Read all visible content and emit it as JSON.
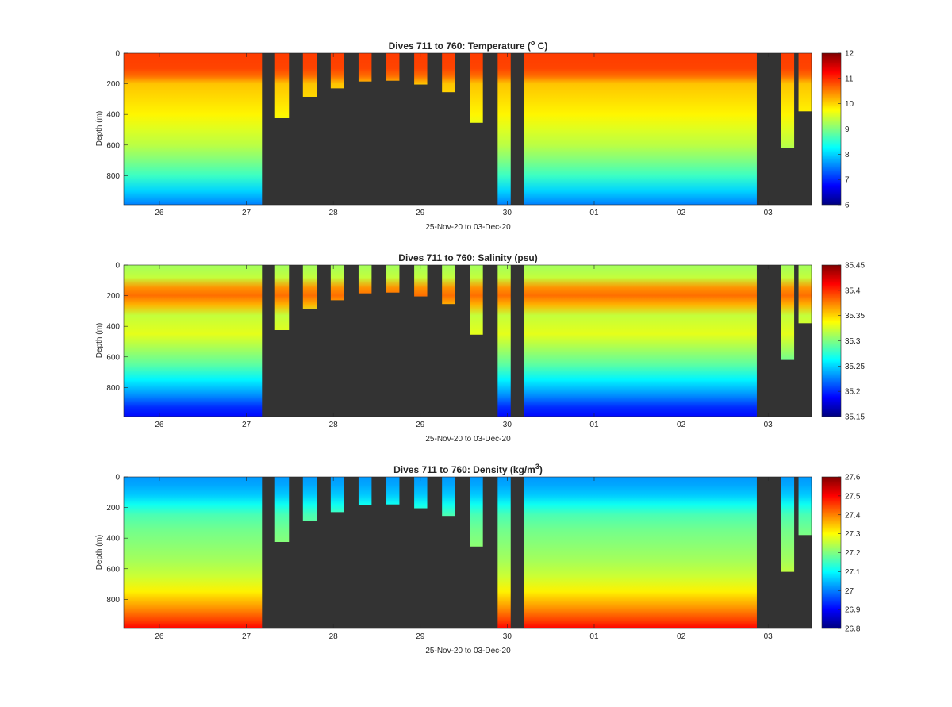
{
  "figure": {
    "background": "#ffffff",
    "panel_background": "#333333"
  },
  "chart_data": [
    {
      "type": "heatmap",
      "title_prefix": "Dives 711 to 760: Temperature (",
      "title_sup": "o",
      "title_suffix": " C)",
      "xlabel": "25-Nov-20 to 03-Dec-20",
      "ylabel": "Depth (m)",
      "x_tick_labels": [
        "26",
        "27",
        "28",
        "29",
        "30",
        "01",
        "02",
        "03"
      ],
      "x_tick_values": [
        1,
        2,
        3,
        4,
        5,
        6,
        7,
        8
      ],
      "xlim": [
        0.59,
        8.5
      ],
      "y_tick_labels": [
        "0",
        "200",
        "400",
        "600",
        "800"
      ],
      "y_tick_values": [
        0,
        200,
        400,
        600,
        800
      ],
      "ylim": [
        0,
        990
      ],
      "y_reversed": true,
      "colorbar": {
        "colormap": "jet",
        "ticks": [
          "6",
          "7",
          "8",
          "9",
          "10",
          "11",
          "12"
        ],
        "range": [
          6,
          12
        ]
      },
      "profile_columns": [
        {
          "x_start": 0.59,
          "x_end": 2.18,
          "max_depth": 990
        },
        {
          "x_start": 2.33,
          "x_end": 2.49,
          "max_depth": 425
        },
        {
          "x_start": 2.65,
          "x_end": 2.81,
          "max_depth": 285
        },
        {
          "x_start": 2.97,
          "x_end": 3.12,
          "max_depth": 230
        },
        {
          "x_start": 3.29,
          "x_end": 3.44,
          "max_depth": 185
        },
        {
          "x_start": 3.61,
          "x_end": 3.76,
          "max_depth": 180
        },
        {
          "x_start": 3.93,
          "x_end": 4.08,
          "max_depth": 205
        },
        {
          "x_start": 4.25,
          "x_end": 4.4,
          "max_depth": 255
        },
        {
          "x_start": 4.57,
          "x_end": 4.72,
          "max_depth": 455
        },
        {
          "x_start": 4.89,
          "x_end": 5.04,
          "max_depth": 990
        },
        {
          "x_start": 5.19,
          "x_end": 7.87,
          "max_depth": 990
        },
        {
          "x_start": 8.15,
          "x_end": 8.3,
          "max_depth": 620
        },
        {
          "x_start": 8.35,
          "x_end": 8.5,
          "max_depth": 380
        }
      ],
      "depth_profile": {
        "depth": [
          0,
          100,
          150,
          200,
          300,
          400,
          500,
          600,
          700,
          800,
          900,
          990
        ],
        "values": [
          10.9,
          10.85,
          10.6,
          10.1,
          9.95,
          9.8,
          9.55,
          9.35,
          9.0,
          8.6,
          8.0,
          7.5
        ]
      }
    },
    {
      "type": "heatmap",
      "title_prefix": "Dives 711 to 760: Salinity (psu)",
      "title_sup": "",
      "title_suffix": "",
      "xlabel": "25-Nov-20 to 03-Dec-20",
      "ylabel": "Depth (m)",
      "x_tick_labels": [
        "26",
        "27",
        "28",
        "29",
        "30",
        "01",
        "02",
        "03"
      ],
      "x_tick_values": [
        1,
        2,
        3,
        4,
        5,
        6,
        7,
        8
      ],
      "xlim": [
        0.59,
        8.5
      ],
      "y_tick_labels": [
        "0",
        "200",
        "400",
        "600",
        "800"
      ],
      "y_tick_values": [
        0,
        200,
        400,
        600,
        800
      ],
      "ylim": [
        0,
        990
      ],
      "y_reversed": true,
      "colorbar": {
        "colormap": "jet",
        "ticks": [
          "35.15",
          "35.2",
          "35.25",
          "35.3",
          "35.35",
          "35.4",
          "35.45"
        ],
        "range": [
          35.15,
          35.45
        ]
      },
      "profile_columns": [
        {
          "x_start": 0.59,
          "x_end": 2.18,
          "max_depth": 990
        },
        {
          "x_start": 2.33,
          "x_end": 2.49,
          "max_depth": 425
        },
        {
          "x_start": 2.65,
          "x_end": 2.81,
          "max_depth": 285
        },
        {
          "x_start": 2.97,
          "x_end": 3.12,
          "max_depth": 230
        },
        {
          "x_start": 3.29,
          "x_end": 3.44,
          "max_depth": 185
        },
        {
          "x_start": 3.61,
          "x_end": 3.76,
          "max_depth": 180
        },
        {
          "x_start": 3.93,
          "x_end": 4.08,
          "max_depth": 205
        },
        {
          "x_start": 4.25,
          "x_end": 4.4,
          "max_depth": 255
        },
        {
          "x_start": 4.57,
          "x_end": 4.72,
          "max_depth": 455
        },
        {
          "x_start": 4.89,
          "x_end": 5.04,
          "max_depth": 990
        },
        {
          "x_start": 5.19,
          "x_end": 7.87,
          "max_depth": 990
        },
        {
          "x_start": 8.15,
          "x_end": 8.3,
          "max_depth": 620
        },
        {
          "x_start": 8.35,
          "x_end": 8.5,
          "max_depth": 380
        }
      ],
      "depth_profile": {
        "depth": [
          0,
          80,
          150,
          200,
          260,
          330,
          450,
          550,
          650,
          750,
          850,
          930,
          990
        ],
        "values": [
          35.31,
          35.32,
          35.37,
          35.38,
          35.36,
          35.32,
          35.33,
          35.31,
          35.29,
          35.26,
          35.23,
          35.2,
          35.19
        ]
      }
    },
    {
      "type": "heatmap",
      "title_prefix": "Dives 711 to 760: Density (kg/m",
      "title_sup": "3",
      "title_suffix": ")",
      "xlabel": "25-Nov-20 to 03-Dec-20",
      "ylabel": "Depth (m)",
      "x_tick_labels": [
        "26",
        "27",
        "28",
        "29",
        "30",
        "01",
        "02",
        "03"
      ],
      "x_tick_values": [
        1,
        2,
        3,
        4,
        5,
        6,
        7,
        8
      ],
      "xlim": [
        0.59,
        8.5
      ],
      "y_tick_labels": [
        "0",
        "200",
        "400",
        "600",
        "800"
      ],
      "y_tick_values": [
        0,
        200,
        400,
        600,
        800
      ],
      "ylim": [
        0,
        990
      ],
      "y_reversed": true,
      "colorbar": {
        "colormap": "jet",
        "ticks": [
          "26.8",
          "26.9",
          "27",
          "27.1",
          "27.2",
          "27.3",
          "27.4",
          "27.5",
          "27.6"
        ],
        "range": [
          26.8,
          27.6
        ]
      },
      "profile_columns": [
        {
          "x_start": 0.59,
          "x_end": 2.18,
          "max_depth": 990
        },
        {
          "x_start": 2.33,
          "x_end": 2.49,
          "max_depth": 425
        },
        {
          "x_start": 2.65,
          "x_end": 2.81,
          "max_depth": 285
        },
        {
          "x_start": 2.97,
          "x_end": 3.12,
          "max_depth": 230
        },
        {
          "x_start": 3.29,
          "x_end": 3.44,
          "max_depth": 185
        },
        {
          "x_start": 3.61,
          "x_end": 3.76,
          "max_depth": 180
        },
        {
          "x_start": 3.93,
          "x_end": 4.08,
          "max_depth": 205
        },
        {
          "x_start": 4.25,
          "x_end": 4.4,
          "max_depth": 255
        },
        {
          "x_start": 4.57,
          "x_end": 4.72,
          "max_depth": 455
        },
        {
          "x_start": 4.89,
          "x_end": 5.04,
          "max_depth": 990
        },
        {
          "x_start": 5.19,
          "x_end": 7.87,
          "max_depth": 990
        },
        {
          "x_start": 8.15,
          "x_end": 8.3,
          "max_depth": 620
        },
        {
          "x_start": 8.35,
          "x_end": 8.5,
          "max_depth": 380
        }
      ],
      "depth_profile": {
        "depth": [
          0,
          50,
          120,
          180,
          250,
          350,
          450,
          550,
          650,
          750,
          850,
          950,
          990
        ],
        "values": [
          27.02,
          27.03,
          27.06,
          27.11,
          27.16,
          27.19,
          27.21,
          27.23,
          27.26,
          27.31,
          27.38,
          27.46,
          27.5
        ]
      }
    }
  ]
}
